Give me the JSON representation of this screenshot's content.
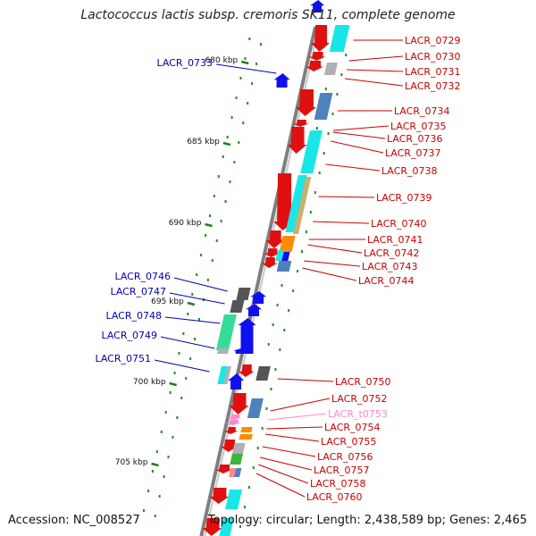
{
  "title": "Lactococcus lactis subsp. cremoris SK11, complete genome",
  "footer": {
    "accession": "Accession: NC_008527",
    "topology": "Topology: circular; Length: 2,438,589 bp; Genes: 2,465"
  },
  "scale": {
    "ticks": [
      {
        "label": "680 kbp",
        "y": 69
      },
      {
        "label": "685 kbp",
        "y": 160
      },
      {
        "label": "690 kbp",
        "y": 251
      },
      {
        "label": "695 kbp",
        "y": 339
      },
      {
        "label": "700 kbp",
        "y": 429
      },
      {
        "label": "705 kbp",
        "y": 519
      }
    ]
  },
  "colors": {
    "forward_label": "#cc0000",
    "reverse_label": "#0000bb",
    "trna_label": "#ff88cc",
    "backbone": "#7f7f7f",
    "tick": "#1f7f1f"
  },
  "genes_right": [
    {
      "label": "LACR_0729",
      "color": "#cc0000"
    },
    {
      "label": "LACR_0730",
      "color": "#cc0000"
    },
    {
      "label": "LACR_0731",
      "color": "#cc0000"
    },
    {
      "label": "LACR_0732",
      "color": "#cc0000"
    },
    {
      "label": "LACR_0734",
      "color": "#cc0000"
    },
    {
      "label": "LACR_0735",
      "color": "#cc0000"
    },
    {
      "label": "LACR_0736",
      "color": "#cc0000"
    },
    {
      "label": "LACR_0737",
      "color": "#cc0000"
    },
    {
      "label": "LACR_0738",
      "color": "#cc0000"
    },
    {
      "label": "LACR_0739",
      "color": "#cc0000"
    },
    {
      "label": "LACR_0740",
      "color": "#cc0000"
    },
    {
      "label": "LACR_0741",
      "color": "#cc0000"
    },
    {
      "label": "LACR_0742",
      "color": "#cc0000"
    },
    {
      "label": "LACR_0743",
      "color": "#cc0000"
    },
    {
      "label": "LACR_0744",
      "color": "#cc0000"
    },
    {
      "label": "LACR_0750",
      "color": "#cc0000"
    },
    {
      "label": "LACR_0752",
      "color": "#cc0000"
    },
    {
      "label": "LACR_t0753",
      "color": "#ff88cc"
    },
    {
      "label": "LACR_0754",
      "color": "#cc0000"
    },
    {
      "label": "LACR_0755",
      "color": "#cc0000"
    },
    {
      "label": "LACR_0756",
      "color": "#cc0000"
    },
    {
      "label": "LACR_0757",
      "color": "#cc0000"
    },
    {
      "label": "LACR_0758",
      "color": "#cc0000"
    },
    {
      "label": "LACR_0760",
      "color": "#cc0000"
    }
  ],
  "genes_left": [
    {
      "label": "LACR_0733",
      "color": "#0000bb"
    },
    {
      "label": "LACR_0746",
      "color": "#0000bb"
    },
    {
      "label": "LACR_0747",
      "color": "#0000bb"
    },
    {
      "label": "LACR_0748",
      "color": "#0000bb"
    },
    {
      "label": "LACR_0749",
      "color": "#0000bb"
    },
    {
      "label": "LACR_0751",
      "color": "#0000bb"
    }
  ]
}
